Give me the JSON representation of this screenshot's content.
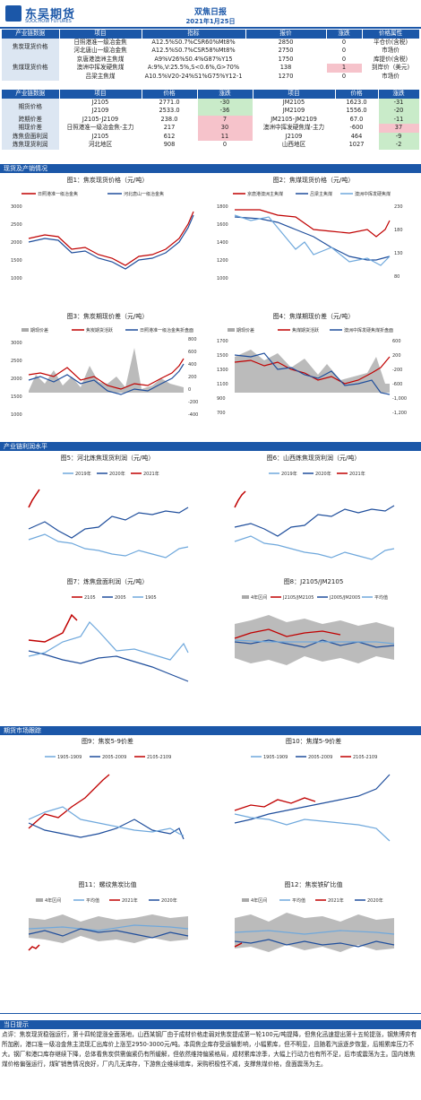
{
  "header": {
    "logo_text": "东吴期货",
    "logo_sub": "SOOCHOW FUTURES",
    "title": "双焦日报",
    "date": "2021年1月25日"
  },
  "spot_table": {
    "headers": [
      "产业链数据",
      "项目",
      "指标",
      "报价",
      "涨跌",
      "价格属性"
    ],
    "rows": [
      {
        "cat": "焦炭现货价格",
        "item": "日照港准一级冶金焦",
        "spec": "A12.5%S0.7%CSR60%Mt8%",
        "price": "2850",
        "chg": "0",
        "attr": "平仓价(含税)"
      },
      {
        "cat": "",
        "item": "河北唐山一级冶金焦",
        "spec": "A12.5%S0.7%CSR58%Mt8%",
        "price": "2750",
        "chg": "0",
        "attr": "市场价"
      },
      {
        "cat": "焦煤现货价格",
        "item": "京唐港澳洲主焦煤",
        "spec": "A9%V26%S0.4%G87%Y15",
        "price": "1750",
        "chg": "0",
        "attr": "库提价(含税)"
      },
      {
        "cat": "",
        "item": "澳洲中挥发硬焦煤",
        "spec": "A:9%,V:25.5%,S<0.6%,G>70%",
        "price": "138",
        "chg": "1",
        "attr": "到岸价（美元)"
      },
      {
        "cat": "",
        "item": "吕梁主焦煤",
        "spec": "A10.5%V20-24%S1%G75%Y12-1",
        "price": "1270",
        "chg": "0",
        "attr": "市场价"
      }
    ]
  },
  "futures_table": {
    "headers": [
      "产业链数据",
      "项目",
      "价格",
      "涨跌",
      "项目",
      "价格",
      "涨跌"
    ],
    "rows": [
      {
        "cat": "期货价格",
        "i1": "J2105",
        "p1": "2771.0",
        "c1": "-30",
        "i2": "JM2105",
        "p2": "1623.0",
        "c2": "-31"
      },
      {
        "cat": "",
        "i1": "J2109",
        "p1": "2533.0",
        "c1": "-36",
        "i2": "JM2109",
        "p2": "1556.0",
        "c2": "-20"
      },
      {
        "cat": "跨期价差",
        "i1": "J2105-J2109",
        "p1": "238.0",
        "c1": "7",
        "i2": "JM2105-JM2109",
        "p2": "67.0",
        "c2": "-11"
      },
      {
        "cat": "期现价差",
        "i1": "日照港准一级冶金焦-主力",
        "p1": "217",
        "c1": "30",
        "i2": "澳洲中挥发硬焦煤-主力",
        "p2": "-600",
        "c2": "37"
      },
      {
        "cat": "炼焦盘面利润",
        "i1": "J2105",
        "p1": "612",
        "c1": "11",
        "i2": "J2109",
        "p2": "464",
        "c2": "-9"
      },
      {
        "cat": "炼焦现货利润",
        "i1": "河北地区",
        "p1": "908",
        "c1": "0",
        "i2": "山西地区",
        "p2": "1027",
        "c2": "-2"
      }
    ]
  },
  "sections": {
    "s1": "现货及产销情况",
    "s2": "产业链利润水平",
    "s3": "期货市场跟踪",
    "s4": "当日提示"
  },
  "charts": {
    "c1": {
      "title": "图1：焦炭现货价格（元/吨）",
      "legend": [
        "日照港准一级冶金焦",
        "河北唐山一级冶金焦"
      ],
      "yticks": [
        "3000",
        "2500",
        "2000",
        "1500",
        "1000"
      ]
    },
    "c2": {
      "title": "图2：焦煤现货价格（元/吨）",
      "legend": [
        "京唐港澳洲主焦煤",
        "吕梁主焦煤",
        "澳洲中挥发硬焦煤"
      ],
      "yticks": [
        "1800",
        "1600",
        "1400",
        "1200",
        "1000"
      ],
      "y2ticks": [
        "230",
        "180",
        "130",
        "80"
      ]
    },
    "c3": {
      "title": "图3：焦炭期现价差（元/吨）",
      "legend": [
        "期现价差",
        "焦炭期货活跃",
        "日照港准一级冶金焦折盘面"
      ],
      "yticks": [
        "3000",
        "2500",
        "2000",
        "1500",
        "1000"
      ],
      "y2ticks": [
        "800",
        "600",
        "400",
        "200",
        "0",
        "-200",
        "-400"
      ]
    },
    "c4": {
      "title": "图4：焦煤期现价差（元/吨）",
      "legend": [
        "期现价差",
        "焦煤期货活跃",
        "澳洲中挥发硬焦煤折盘面"
      ],
      "yticks": [
        "1700",
        "1500",
        "1300",
        "1100",
        "900",
        "700"
      ],
      "y2ticks": [
        "600",
        "200",
        "-200",
        "-600",
        "-1,000",
        "-1,200"
      ]
    },
    "c5": {
      "title": "图5：河北炼焦现货利润（元/吨）",
      "legend": [
        "2019年",
        "2020年",
        "2021年"
      ]
    },
    "c6": {
      "title": "图6：山西炼焦现货利润（元/吨）",
      "legend": [
        "2019年",
        "2020年",
        "2021年"
      ]
    },
    "c7": {
      "title": "图7：炼焦盘面利润（元/吨）",
      "legend": [
        "2105",
        "2005",
        "1905"
      ]
    },
    "c8": {
      "title": "图8：J2105/JM2105",
      "legend": [
        "4年区间",
        "J2105/JM2105",
        "J2005/JM2005",
        "平均值"
      ]
    },
    "c9": {
      "title": "图9：焦炭5-9价差",
      "legend": [
        "1905-1909",
        "2005-2009",
        "2105-2109"
      ]
    },
    "c10": {
      "title": "图10：焦煤5-9价差",
      "legend": [
        "1905-1909",
        "2005-2009",
        "2105-2109"
      ]
    },
    "c11": {
      "title": "图11：螺纹焦炭比值",
      "legend": [
        "4年区间",
        "平均值",
        "2021年",
        "2020年"
      ]
    },
    "c12": {
      "title": "图12：焦炭铁矿比值",
      "legend": [
        "4年区间",
        "平均值",
        "2021年",
        "2020年"
      ]
    }
  },
  "tip": "点评：焦炭现货稳强运行，第十四轮提涨全面落地，山西某钢厂由于成材价格走弱对焦炭提成第一轮100元/吨提降，但焦化迅速提出第十五轮提涨，钢焦博弈有所加剧，港口准一级冶金焦主流现汇出库价上涨至2950-3000元/吨。本周焦企库存受运输影响，小幅累库，但不明显，且随着汽运逐步恢复，后期累库压力不大。钢厂和港口库存继续下降，总体看焦炭供需偏紧仍有所缓解，但依然维持偏紧格局，成材累库凉季，大幅上行动力也有所不足，后市或震荡为主。国内炼焦煤价格偏强运行，煤矿销售情况良好，厂内几无库存，下游焦企维续增库，采购积极性不减，支撑焦煤价格，盘面震荡为主。"
}
